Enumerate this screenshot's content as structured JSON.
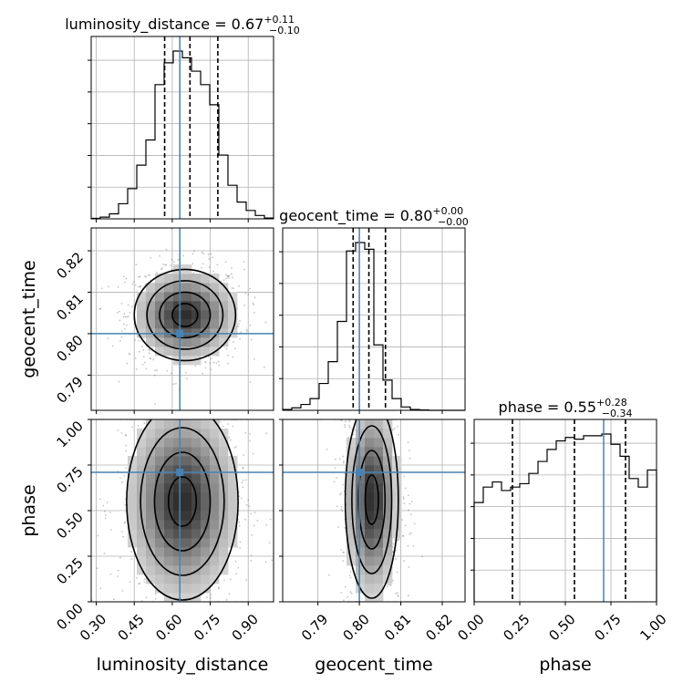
{
  "chart_data": {
    "type": "corner",
    "parameters": [
      "luminosity_distance",
      "geocent_time",
      "phase"
    ],
    "truth_color": "#4682b4",
    "truths": {
      "luminosity_distance": 0.63,
      "geocent_time": 0.8,
      "phase": 0.71
    },
    "titles": {
      "luminosity_distance": {
        "main": "luminosity_distance = 0.67",
        "sup": "+0.11",
        "sub": "−0.10"
      },
      "geocent_time": {
        "main": "geocent_time = 0.80",
        "sup": "+0.00",
        "sub": "−0.00"
      },
      "phase": {
        "main": "phase = 0.55",
        "sup": "+0.28",
        "sub": "−0.34"
      }
    },
    "axes": {
      "luminosity_distance": {
        "range": [
          0.28,
          1.0
        ],
        "ticks": [
          0.3,
          0.45,
          0.6,
          0.75,
          0.9
        ],
        "tick_labels": [
          "0.30",
          "0.45",
          "0.60",
          "0.75",
          "0.90"
        ]
      },
      "geocent_time": {
        "range": [
          0.7815,
          0.8255
        ],
        "ticks": [
          0.79,
          0.8,
          0.81,
          0.82
        ],
        "tick_labels": [
          "0.79",
          "0.80",
          "0.81",
          "0.82"
        ]
      },
      "phase": {
        "range": [
          0.0,
          1.0
        ],
        "ticks": [
          0.0,
          0.25,
          0.5,
          0.75,
          1.0
        ],
        "tick_labels": [
          "0.00",
          "0.25",
          "0.50",
          "0.75",
          "1.00"
        ]
      }
    },
    "quantiles": {
      "luminosity_distance": [
        0.57,
        0.67,
        0.78
      ],
      "geocent_time": [
        0.7985,
        0.8023,
        0.8063
      ],
      "phase": [
        0.21,
        0.55,
        0.83
      ]
    },
    "histograms": {
      "luminosity_distance": {
        "edges": [
          0.28,
          0.316,
          0.352,
          0.388,
          0.424,
          0.46,
          0.496,
          0.532,
          0.568,
          0.604,
          0.64,
          0.676,
          0.712,
          0.748,
          0.784,
          0.82,
          0.856,
          0.892,
          0.928,
          0.964,
          1.0
        ],
        "counts": [
          0.003,
          0.01,
          0.03,
          0.09,
          0.18,
          0.32,
          0.47,
          0.8,
          0.93,
          1.0,
          0.96,
          0.88,
          0.8,
          0.68,
          0.38,
          0.2,
          0.1,
          0.05,
          0.02,
          0.005
        ]
      },
      "geocent_time": {
        "edges": [
          0.7815,
          0.7837,
          0.7859,
          0.7881,
          0.7903,
          0.7925,
          0.7947,
          0.7969,
          0.7991,
          0.8013,
          0.8035,
          0.8057,
          0.8079,
          0.8101,
          0.8123,
          0.8145,
          0.8167,
          0.8189,
          0.8211,
          0.8233,
          0.8255
        ],
        "counts": [
          0.005,
          0.015,
          0.035,
          0.07,
          0.16,
          0.29,
          0.53,
          0.95,
          1.0,
          0.96,
          0.39,
          0.18,
          0.07,
          0.02,
          0.005,
          0.002,
          0.0,
          0.0,
          0.0,
          0.0
        ]
      },
      "phase": {
        "edges": [
          0.0,
          0.05,
          0.1,
          0.15,
          0.2,
          0.25,
          0.3,
          0.35,
          0.4,
          0.45,
          0.5,
          0.55,
          0.6,
          0.65,
          0.7,
          0.75,
          0.8,
          0.85,
          0.9,
          0.95,
          1.0
        ],
        "counts": [
          0.58,
          0.67,
          0.7,
          0.65,
          0.67,
          0.69,
          0.75,
          0.82,
          0.89,
          0.94,
          0.96,
          0.95,
          0.97,
          0.97,
          0.98,
          0.92,
          0.85,
          0.72,
          0.67,
          0.77
        ]
      }
    },
    "density_2d": {
      "luminosity_distance-geocent_time": {
        "center": [
          0.65,
          0.8045
        ],
        "spread": [
          0.1,
          0.0055
        ]
      },
      "luminosity_distance-phase": {
        "center": [
          0.64,
          0.55
        ],
        "spread": [
          0.11,
          0.27
        ]
      },
      "geocent_time-phase": {
        "center": [
          0.803,
          0.56
        ],
        "spread": [
          0.0032,
          0.27
        ]
      }
    }
  }
}
